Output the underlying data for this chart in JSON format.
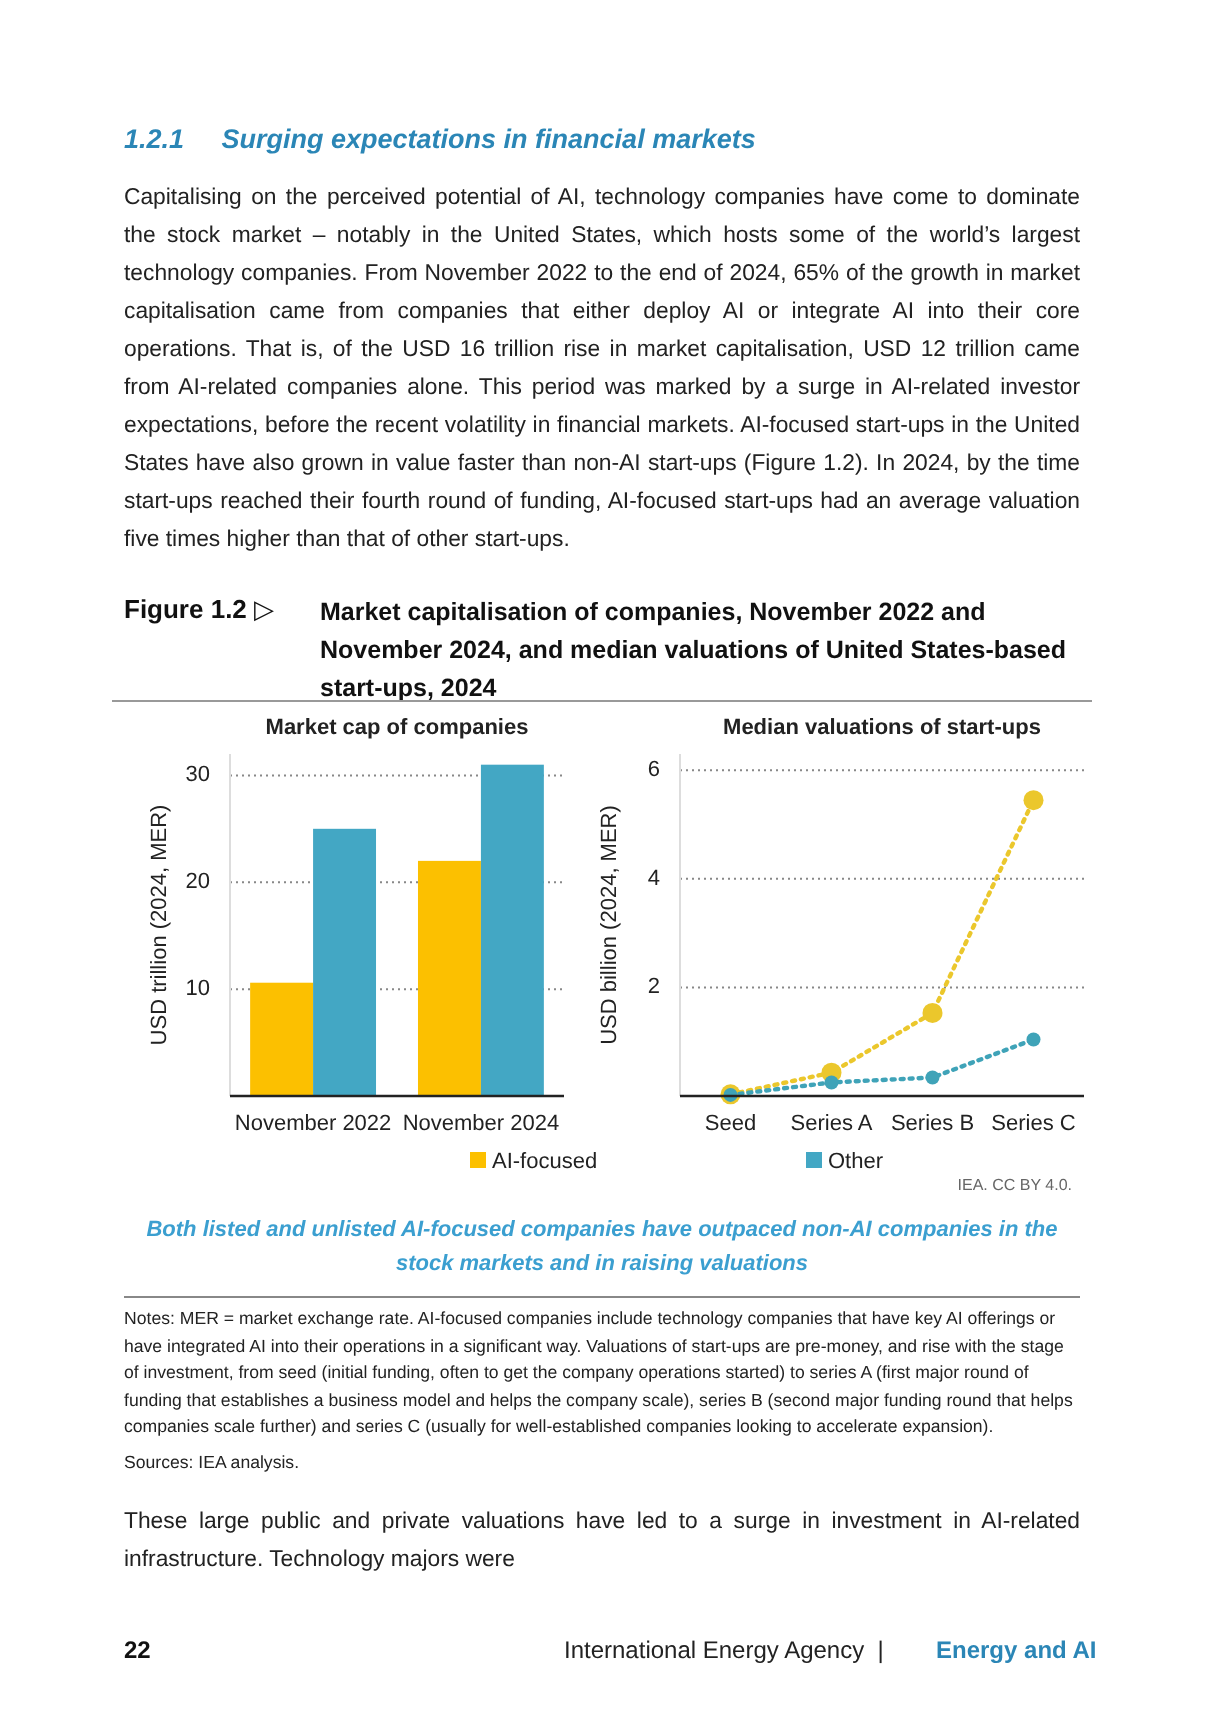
{
  "chart_data": [
    {
      "type": "other",
      "title": "1.2.1     Surging expectations in financial markets",
      "annotations": [
        "Capitalising on the perceived potential of AI, technology companies have come to dominate the stock market – notably in the United States, which hosts some of the world’s largest technology companies. From November 2022 to the end of 2024, 65% of the growth in market capitalisation came from companies that either deploy AI or integrate AI into their core operations. That is, of the USD 16 trillion rise in market capitalisation, USD 12 trillion came from AI-related companies alone. This period was marked by a surge in AI-related investor expectations, before the recent volatility in financial markets. AI-focused start-ups in the United States have also grown in value faster than non-AI start-ups (Figure 1.2). In 2024, by the time start-ups reached their fourth round of funding, AI-focused start-ups had an average valuation five times higher than that of other start-ups.",
        "Figure 1.2 ▷",
        "Market capitalisation of companies, November 2022 and November 2024, and median valuations of United States-based start-ups, 2024",
        "IEA. CC BY 4.0.",
        "Both listed and unlisted AI-focused companies have outpaced non-AI companies in the stock markets and in raising valuations",
        "Notes: MER = market exchange rate. AI-focused companies include technology companies that have key AI offerings or have integrated AI into their operations in a significant way. Valuations of start-ups are pre-money, and rise with the stage of investment, from seed (initial funding, often to get the company operations started) to series A (first major round of funding that establishes a business model and helps the company scale), series B (second major funding round that helps companies scale further) and series C (usually for well-established companies looking to accelerate expansion).",
        "Sources: IEA analysis.",
        "These large public and private valuations have led to a surge in investment in AI-related infrastructure. Technology majors were",
        "22",
        "International Energy Agency  |",
        "Energy and AI"
      ]
    },
    {
      "type": "bar",
      "title": "Market cap of companies",
      "ylabel": "USD trillion (2024, MER)",
      "categories": [
        "November 2022",
        "November 2024"
      ],
      "series": [
        {
          "name": "AI-focused",
          "color": "#fcc000",
          "values": [
            10.6,
            22
          ]
        },
        {
          "name": "Other",
          "color": "#43a7c4",
          "values": [
            25,
            31
          ]
        }
      ],
      "ylim": [
        0,
        32
      ],
      "yticks": [
        10,
        20,
        30
      ],
      "grid": "y",
      "legend": "bottom"
    },
    {
      "type": "line",
      "title": "Median valuations of start-ups",
      "ylabel": "USD billion (2024, MER)",
      "categories": [
        "Seed",
        "Series A",
        "Series B",
        "Series C"
      ],
      "series": [
        {
          "color": "#ebc72c",
          "values": [
            0.03,
            0.43,
            1.53,
            5.45
          ]
        },
        {
          "color": "#3fa3b8",
          "values": [
            0.02,
            0.25,
            0.34,
            1.04
          ]
        }
      ],
      "ylim": [
        0,
        6.3
      ],
      "yticks": [
        2,
        4,
        6
      ],
      "grid": "y",
      "marker": "circle",
      "line_style": "dotted"
    }
  ]
}
